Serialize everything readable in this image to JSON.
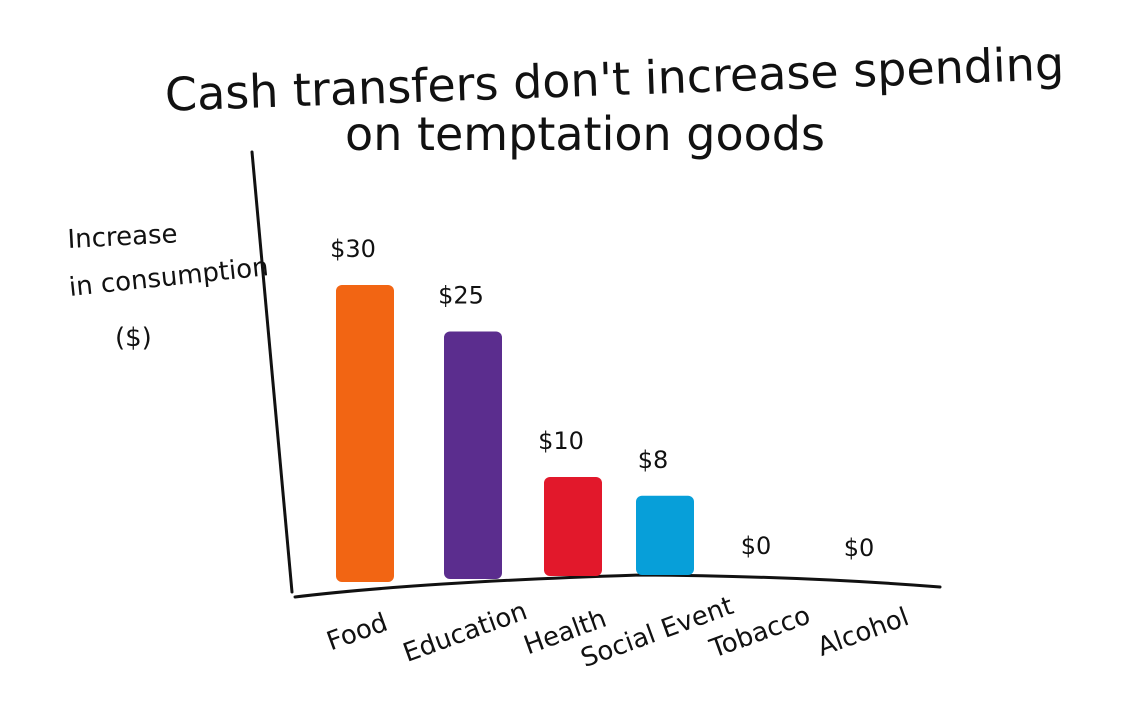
{
  "chart_data": {
    "type": "bar",
    "title_line1": "Cash transfers don't increase spending",
    "title_line2": "on temptation goods",
    "ylabel_line1": "Increase",
    "ylabel_line2": "in consumption",
    "ylabel_line3": "($)",
    "categories": [
      "Food",
      "Education",
      "Health",
      "Social Event",
      "Tobacco",
      "Alcohol"
    ],
    "values": [
      30,
      25,
      10,
      8,
      0,
      0
    ],
    "value_labels": [
      "$30",
      "$25",
      "$10",
      "$8",
      "$0",
      "$0"
    ],
    "colors": [
      "#f26513",
      "#5b2d8e",
      "#e2182b",
      "#079fd9",
      "#f26513",
      "#f26513"
    ],
    "ylim": [
      0,
      33
    ],
    "grid": false
  }
}
